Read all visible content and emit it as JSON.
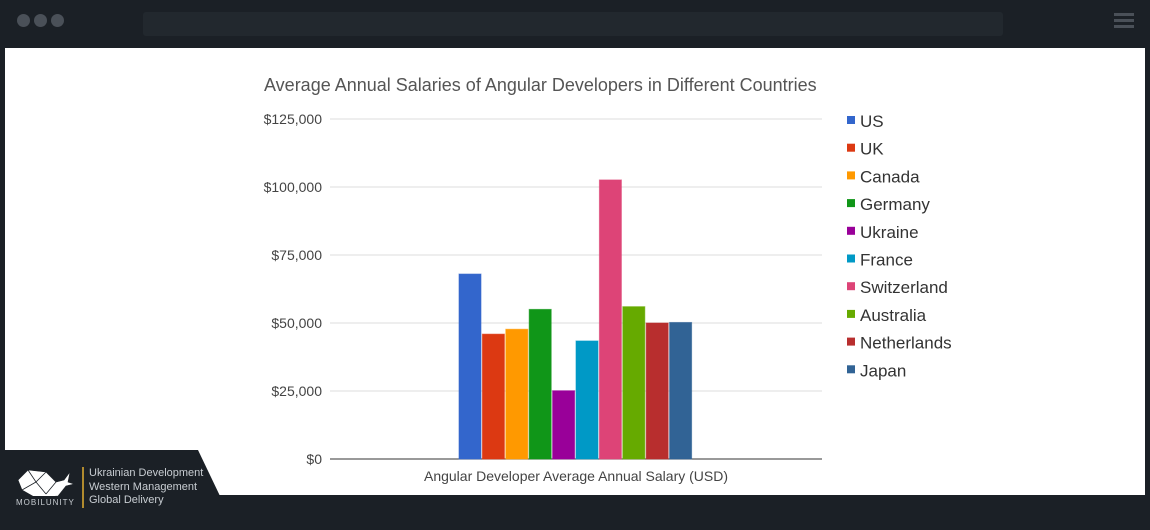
{
  "footer": {
    "brand": "MOBILUNITY",
    "taglines": [
      "Ukrainian Development",
      "Western Management",
      "Global Delivery"
    ]
  },
  "chart_data": {
    "type": "bar",
    "title": "Average Annual Salaries of Angular Developers in Different Countries",
    "xlabel": "Angular Developer Average Annual Salary (USD)",
    "ylabel": "",
    "ylim": [
      0,
      125000
    ],
    "yticks": [
      "$0",
      "$25,000",
      "$50,000",
      "$75,000",
      "$100,000",
      "$125,000"
    ],
    "ytick_values": [
      0,
      25000,
      50000,
      75000,
      100000,
      125000
    ],
    "grid": true,
    "legend_position": "right",
    "series": [
      {
        "name": "US",
        "value": 68000,
        "color": "#3366cc"
      },
      {
        "name": "UK",
        "value": 45900,
        "color": "#dc3912"
      },
      {
        "name": "Canada",
        "value": 47700,
        "color": "#ff9900"
      },
      {
        "name": "Germany",
        "value": 55000,
        "color": "#109618"
      },
      {
        "name": "Ukraine",
        "value": 25100,
        "color": "#990099"
      },
      {
        "name": "France",
        "value": 43400,
        "color": "#0099c6"
      },
      {
        "name": "Switzerland",
        "value": 102600,
        "color": "#dd4477"
      },
      {
        "name": "Australia",
        "value": 56000,
        "color": "#66aa00"
      },
      {
        "name": "Netherlands",
        "value": 50000,
        "color": "#b82e2e"
      },
      {
        "name": "Japan",
        "value": 50200,
        "color": "#316395"
      }
    ]
  }
}
